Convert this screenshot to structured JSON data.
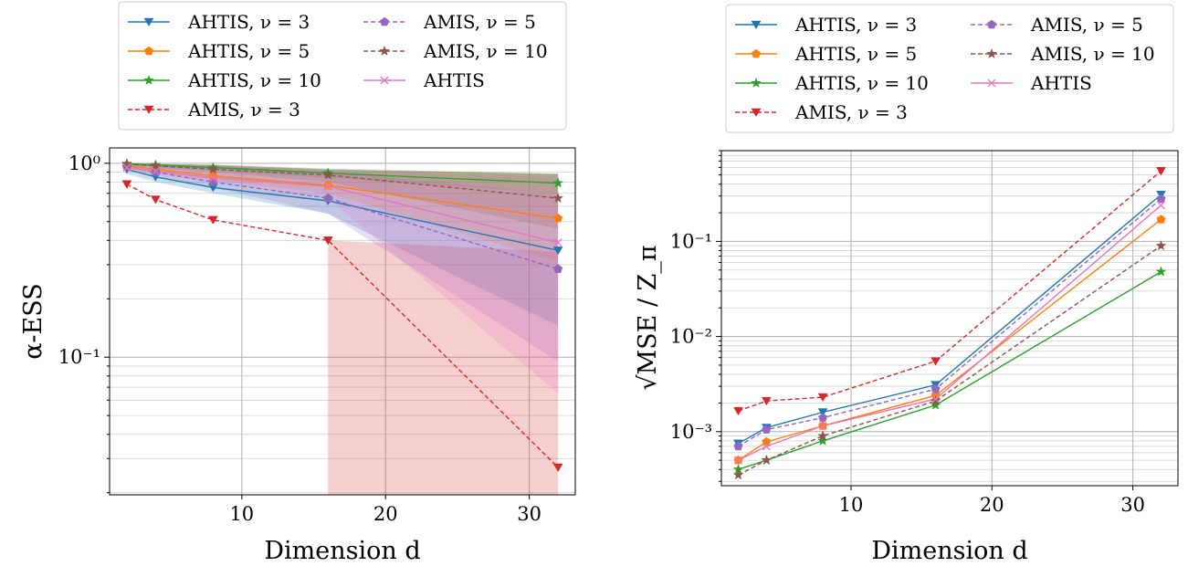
{
  "colors": {
    "ahtis3": "#1f77b4",
    "ahtis5": "#ff7f0e",
    "ahtis10": "#2ca02c",
    "amis3": "#d62728",
    "amis5": "#9467bd",
    "amis10": "#8c564b",
    "ahtis": "#e377c2"
  },
  "series_meta": [
    {
      "key": "ahtis3",
      "label": "AHTIS, ν = 3",
      "marker": "triangle-down",
      "dash": false
    },
    {
      "key": "ahtis5",
      "label": "AHTIS, ν = 5",
      "marker": "pentagon",
      "dash": false
    },
    {
      "key": "ahtis10",
      "label": "AHTIS, ν = 10",
      "marker": "star",
      "dash": false
    },
    {
      "key": "amis3",
      "label": "AMIS, ν = 3",
      "marker": "triangle-down",
      "dash": true
    },
    {
      "key": "amis5",
      "label": "AMIS, ν = 5",
      "marker": "pentagon",
      "dash": true
    },
    {
      "key": "amis10",
      "label": "AMIS, ν = 10",
      "marker": "star",
      "dash": true
    },
    {
      "key": "ahtis",
      "label": "AHTIS",
      "marker": "x",
      "dash": false
    }
  ],
  "chart_data": [
    {
      "type": "line",
      "xlabel": "Dimension d",
      "ylabel": "α-ESS",
      "yscale": "log",
      "xlim": [
        0.8,
        33.2
      ],
      "ylim": [
        0.0195,
        1.2
      ],
      "xticks": [
        10,
        20,
        30
      ],
      "yticks": [
        {
          "value": 1,
          "label": "10⁰"
        },
        {
          "value": 0.1,
          "label": "10⁻¹"
        }
      ],
      "grid": true,
      "legend": "top-center, outside above plot, 2 columns",
      "x": [
        2,
        4,
        8,
        16,
        32
      ],
      "series": [
        {
          "key": "ahtis3",
          "name": "AHTIS, ν = 3",
          "values": [
            0.93,
            0.85,
            0.75,
            0.64,
            0.355
          ],
          "band": [
            [
              0.995,
              0.88
            ],
            [
              0.99,
              0.8
            ],
            [
              0.98,
              0.7
            ],
            [
              0.93,
              0.55
            ],
            [
              0.88,
              0.145
            ]
          ]
        },
        {
          "key": "ahtis5",
          "name": "AHTIS, ν = 5",
          "values": [
            0.97,
            0.93,
            0.86,
            0.77,
            0.52
          ],
          "band": [
            [
              0.995,
              0.95
            ],
            [
              0.99,
              0.9
            ],
            [
              0.98,
              0.82
            ],
            [
              0.93,
              0.7
            ],
            [
              0.88,
              0.31
            ]
          ]
        },
        {
          "key": "ahtis10",
          "name": "AHTIS, ν = 10",
          "values": [
            0.995,
            0.98,
            0.95,
            0.89,
            0.79
          ],
          "band": [
            [
              1.0,
              0.98
            ],
            [
              0.995,
              0.96
            ],
            [
              0.985,
              0.92
            ],
            [
              0.94,
              0.84
            ],
            [
              0.885,
              0.7
            ]
          ]
        },
        {
          "key": "amis3",
          "name": "AMIS, ν = 3",
          "values": [
            0.78,
            0.65,
            0.51,
            0.4,
            0.027
          ],
          "band": [
            null,
            null,
            null,
            [
              0.4,
              0.0195
            ],
            [
              0.35,
              0.0195
            ]
          ]
        },
        {
          "key": "amis5",
          "name": "AMIS, ν = 5",
          "values": [
            0.96,
            0.9,
            0.8,
            0.66,
            0.285
          ],
          "band": [
            [
              0.995,
              0.93
            ],
            [
              0.99,
              0.86
            ],
            [
              0.98,
              0.75
            ],
            [
              0.9,
              0.55
            ],
            [
              0.7,
              0.095
            ]
          ]
        },
        {
          "key": "amis10",
          "name": "AMIS, ν = 10",
          "values": [
            0.99,
            0.97,
            0.93,
            0.87,
            0.66
          ],
          "band": [
            [
              1.0,
              0.97
            ],
            [
              0.99,
              0.94
            ],
            [
              0.98,
              0.9
            ],
            [
              0.93,
              0.8
            ],
            [
              0.88,
              0.46
            ]
          ]
        },
        {
          "key": "ahtis",
          "name": "AHTIS",
          "values": [
            0.95,
            0.91,
            0.84,
            0.76,
            0.39
          ],
          "band": [
            [
              0.995,
              0.93
            ],
            [
              0.99,
              0.88
            ],
            [
              0.98,
              0.8
            ],
            [
              0.92,
              0.66
            ],
            [
              0.85,
              0.065
            ]
          ]
        }
      ]
    },
    {
      "type": "line",
      "xlabel": "Dimension d",
      "ylabel": "√MSE / Z_π",
      "yscale": "log",
      "xlim": [
        0.8,
        33.2
      ],
      "ylim": [
        0.00027,
        0.9
      ],
      "xticks": [
        10,
        20,
        30
      ],
      "yticks": [
        {
          "value": 0.001,
          "label": "10⁻³"
        },
        {
          "value": 0.01,
          "label": "10⁻²"
        },
        {
          "value": 0.1,
          "label": "10⁻¹"
        }
      ],
      "grid": true,
      "legend": "top-center, outside above plot, 2 columns",
      "x": [
        2,
        4,
        8,
        16,
        32
      ],
      "series": [
        {
          "key": "ahtis3",
          "name": "AHTIS, ν = 3",
          "values": [
            0.00075,
            0.0011,
            0.0016,
            0.0031,
            0.31
          ]
        },
        {
          "key": "ahtis5",
          "name": "AHTIS, ν = 5",
          "values": [
            0.0005,
            0.00078,
            0.00115,
            0.0024,
            0.17
          ]
        },
        {
          "key": "ahtis10",
          "name": "AHTIS, ν = 10",
          "values": [
            0.0004,
            0.0005,
            0.0008,
            0.0019,
            0.048
          ]
        },
        {
          "key": "amis3",
          "name": "AMIS, ν = 3",
          "values": [
            0.00165,
            0.0021,
            0.0023,
            0.0055,
            0.55
          ]
        },
        {
          "key": "amis5",
          "name": "AMIS, ν = 5",
          "values": [
            0.0007,
            0.00105,
            0.0014,
            0.0028,
            0.28
          ]
        },
        {
          "key": "amis10",
          "name": "AMIS, ν = 10",
          "values": [
            0.00035,
            0.0005,
            0.0009,
            0.0021,
            0.09
          ]
        },
        {
          "key": "ahtis",
          "name": "AHTIS",
          "values": [
            0.0005,
            0.0007,
            0.00115,
            0.0022,
            0.24
          ]
        }
      ]
    }
  ]
}
